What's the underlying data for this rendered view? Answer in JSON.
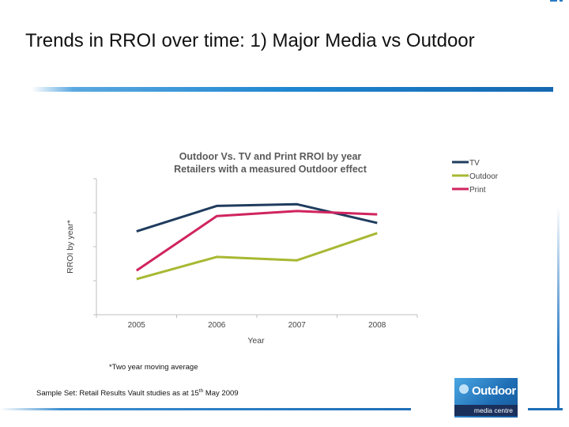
{
  "slide": {
    "title": "Trends in RROI over time: 1) Major Media vs Outdoor",
    "footnote": "*Two year moving average",
    "source_prefix": "Sample Set: Retail Results Vault studies as at 15",
    "source_sup": "th",
    "source_suffix": " May 2009",
    "logo_main": "Outdoor",
    "logo_sub": "media centre",
    "logo_icon": "outdoor-logo-icon"
  },
  "chart_data": {
    "type": "line",
    "title_line1": "Outdoor Vs. TV and Print RROI by year",
    "title_line2": "Retailers with a measured Outdoor effect",
    "xlabel": "Year",
    "ylabel": "RROI by year*",
    "categories": [
      "2005",
      "2006",
      "2007",
      "2008"
    ],
    "ylim": [
      0,
      8
    ],
    "grid": false,
    "legend_position": "right",
    "series": [
      {
        "name": "TV",
        "color": "#1f3c5e",
        "values": [
          4.9,
          6.4,
          6.5,
          5.4
        ]
      },
      {
        "name": "Outdoor",
        "color": "#a8b832",
        "values": [
          2.1,
          3.4,
          3.2,
          4.8
        ]
      },
      {
        "name": "Print",
        "color": "#d0245f",
        "values": [
          2.6,
          5.8,
          6.1,
          5.9
        ]
      }
    ]
  }
}
